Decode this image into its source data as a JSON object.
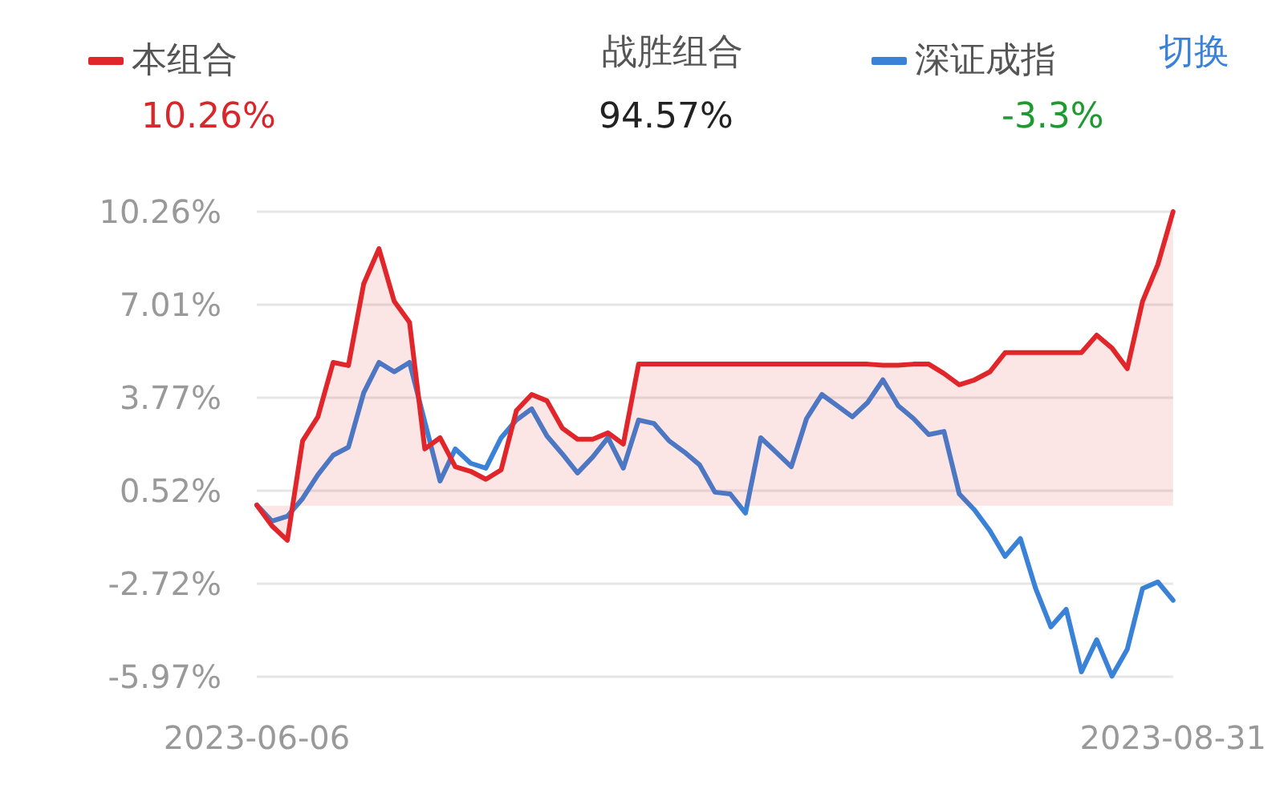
{
  "chart_data": {
    "type": "line",
    "categories": [
      "2023-06-06",
      null,
      null,
      null,
      null,
      null,
      null,
      null,
      null,
      null,
      null,
      null,
      null,
      null,
      null,
      null,
      null,
      null,
      null,
      null,
      null,
      null,
      null,
      null,
      null,
      null,
      null,
      null,
      null,
      null,
      null,
      null,
      null,
      null,
      null,
      null,
      null,
      null,
      null,
      null,
      null,
      null,
      null,
      null,
      null,
      null,
      null,
      null,
      null,
      null,
      null,
      null,
      null,
      null,
      null,
      null,
      null,
      null,
      null,
      null,
      "2023-08-31"
    ],
    "series": [
      {
        "name": "本组合",
        "type": "area",
        "color": "#e0262a",
        "values": [
          0.02,
          -0.71,
          -1.21,
          2.26,
          3.1,
          5.0,
          4.89,
          7.74,
          8.97,
          7.13,
          6.4,
          1.98,
          2.37,
          1.36,
          1.2,
          0.92,
          1.25,
          3.32,
          3.88,
          3.66,
          2.71,
          2.32,
          2.32,
          2.54,
          2.15,
          4.94,
          4.94,
          4.94,
          4.94,
          4.94,
          4.94,
          4.94,
          4.94,
          4.94,
          4.94,
          4.94,
          4.94,
          4.94,
          4.94,
          4.94,
          4.94,
          4.9,
          4.9,
          4.94,
          4.94,
          4.61,
          4.22,
          4.39,
          4.67,
          5.34,
          5.34,
          5.34,
          5.34,
          5.34,
          5.34,
          5.95,
          5.5,
          4.78,
          7.13,
          8.41,
          10.26
        ]
      },
      {
        "name": "深证成指",
        "color": "#3a82d8",
        "values": [
          0.02,
          -0.54,
          -0.37,
          0.25,
          1.08,
          1.76,
          2.04,
          3.94,
          5.0,
          4.67,
          5.0,
          2.93,
          0.86,
          1.98,
          1.48,
          1.31,
          2.37,
          2.99,
          3.38,
          2.43,
          1.81,
          1.14,
          1.7,
          2.37,
          1.31,
          2.99,
          2.87,
          2.26,
          1.87,
          1.42,
          0.47,
          0.41,
          -0.26,
          2.37,
          1.87,
          1.36,
          3.04,
          3.88,
          3.49,
          3.1,
          3.6,
          4.39,
          3.49,
          3.04,
          2.48,
          2.59,
          0.41,
          -0.15,
          -0.87,
          -1.77,
          -1.15,
          -2.89,
          -4.23,
          -3.62,
          -5.8,
          -4.68,
          -5.95,
          -5.01,
          -2.89,
          -2.66,
          -3.3
        ]
      }
    ],
    "ylim": [
      -5.97,
      10.26
    ],
    "yticks": [
      {
        "value": -5.97,
        "label": "-5.97%"
      },
      {
        "value": -2.72,
        "label": "-2.72%"
      },
      {
        "value": 0.52,
        "label": "0.52%"
      },
      {
        "value": 3.77,
        "label": "3.77%"
      },
      {
        "value": 7.01,
        "label": "7.01%"
      },
      {
        "value": 10.26,
        "label": "10.26%"
      }
    ],
    "grid": "y",
    "legend": "top",
    "marker": "none",
    "line_style": "solid",
    "annotations": [
      "10.26%",
      "战胜组合",
      "94.57%",
      "-3.3%",
      "切换"
    ]
  }
}
